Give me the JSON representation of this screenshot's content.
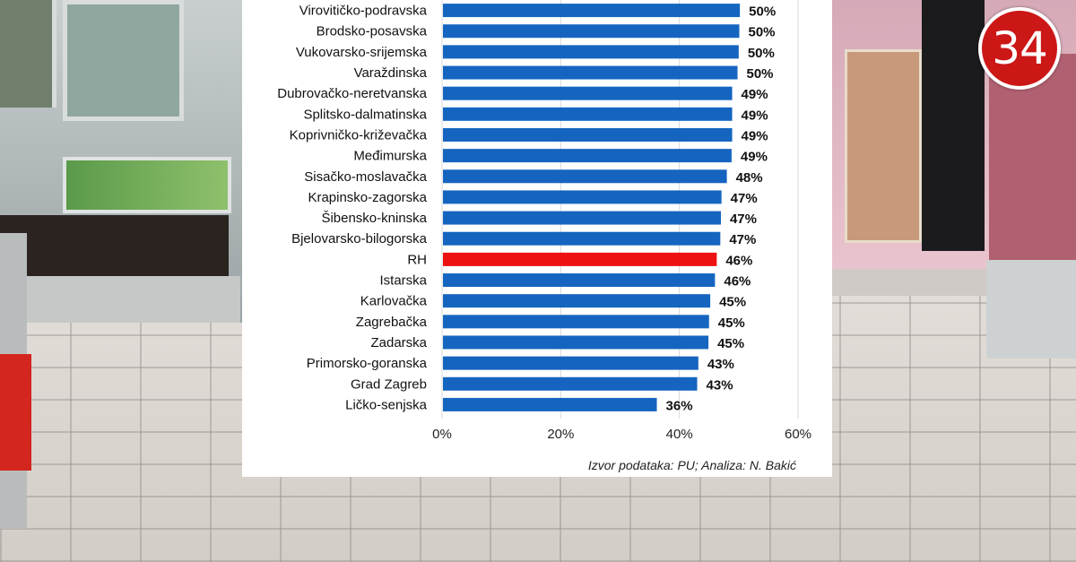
{
  "logo": {
    "text": "34",
    "color": "#cc1717"
  },
  "chart_data": {
    "type": "bar",
    "orientation": "horizontal",
    "categories": [
      "Virovitičko-podravska",
      "Brodsko-posavska",
      "Vukovarsko-srijemska",
      "Varaždinska",
      "Dubrovačko-neretvanska",
      "Splitsko-dalmatinska",
      "Koprivničko-križevačka",
      "Međimurska",
      "Sisačko-moslavačka",
      "Krapinsko-zagorska",
      "Šibensko-kninska",
      "Bjelovarsko-bilogorska",
      "RH",
      "Istarska",
      "Karlovačka",
      "Zagrebačka",
      "Zadarska",
      "Primorsko-goranska",
      "Grad Zagreb",
      "Ličko-senjska"
    ],
    "values": [
      50.2,
      50.1,
      50.0,
      49.8,
      48.9,
      48.9,
      48.9,
      48.8,
      48.0,
      47.1,
      47.0,
      46.9,
      46.3,
      46.0,
      45.2,
      45.0,
      44.9,
      43.2,
      43.0,
      36.2
    ],
    "labels": [
      "50%",
      "50%",
      "50%",
      "50%",
      "49%",
      "49%",
      "49%",
      "49%",
      "48%",
      "47%",
      "47%",
      "47%",
      "46%",
      "46%",
      "45%",
      "45%",
      "45%",
      "43%",
      "43%",
      "36%"
    ],
    "highlight": "RH",
    "colors": {
      "bar": "#1565c0",
      "highlight": "#ee1111",
      "grid": "#d9d9d9"
    },
    "xlim": [
      0,
      60
    ],
    "xticks": [
      "0%",
      "20%",
      "40%",
      "60%"
    ],
    "xtick_values": [
      0,
      20,
      40,
      60
    ],
    "grid": true,
    "title": "",
    "xlabel": "",
    "ylabel": "",
    "source": "Izvor podataka: PU; Analiza: N. Bakić"
  }
}
